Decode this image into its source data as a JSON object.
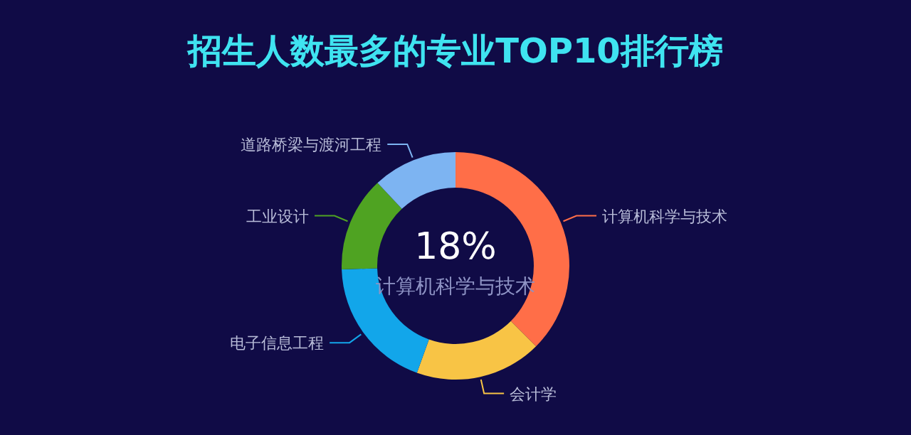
{
  "chart_data": {
    "type": "donut",
    "title": "招生人数最多的专业TOP10排行榜",
    "categories": [
      "计算机科学与技术",
      "会计学",
      "电子信息工程",
      "工业设计",
      "道路桥梁与渡河工程"
    ],
    "values": [
      37.5,
      18,
      19,
      13.5,
      12
    ],
    "colors": [
      "#ff6e48",
      "#f8c445",
      "#12a6ea",
      "#4fa322",
      "#7db4f2"
    ],
    "annotations": [
      "18%",
      "计算机科学与技术"
    ]
  }
}
